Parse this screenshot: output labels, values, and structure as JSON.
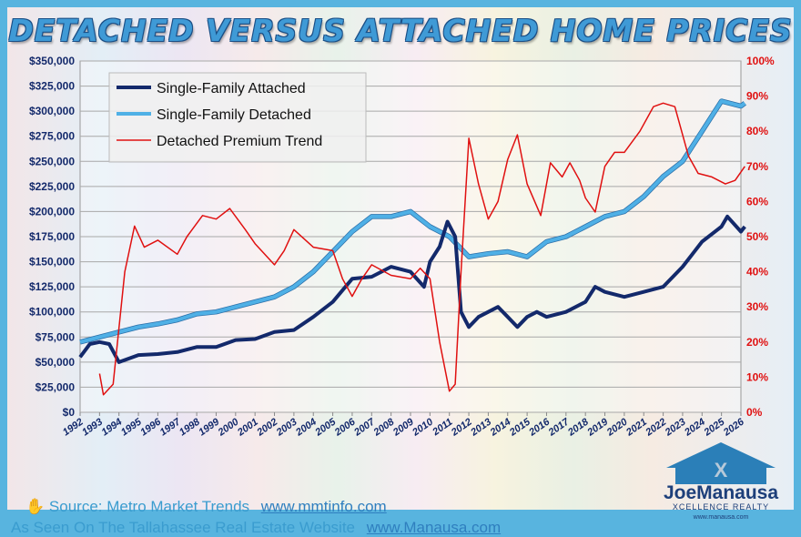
{
  "chart_data": {
    "type": "line",
    "title": "DETACHED VERSUS ATTACHED HOME PRICES",
    "x_ticks": [
      "1992",
      "1993",
      "1994",
      "1995",
      "1996",
      "1997",
      "1998",
      "1999",
      "2000",
      "2001",
      "2002",
      "2003",
      "2004",
      "2005",
      "2006",
      "2007",
      "2008",
      "2009",
      "2010",
      "2011",
      "2012",
      "2013",
      "2014",
      "2015",
      "2016",
      "2017",
      "2018",
      "2019",
      "2020",
      "2021",
      "2022",
      "2023",
      "2024",
      "2025",
      "2026"
    ],
    "xlim": [
      1992,
      2026
    ],
    "y_left_ticks": [
      "$0",
      "$25,000",
      "$50,000",
      "$75,000",
      "$100,000",
      "$125,000",
      "$150,000",
      "$175,000",
      "$200,000",
      "$225,000",
      "$250,000",
      "$275,000",
      "$300,000",
      "$325,000",
      "$350,000"
    ],
    "ylim_left": [
      0,
      350000
    ],
    "y_right_ticks": [
      "0%",
      "10%",
      "20%",
      "30%",
      "40%",
      "50%",
      "60%",
      "70%",
      "80%",
      "90%",
      "100%"
    ],
    "ylim_right": [
      0,
      100
    ],
    "grid": true,
    "legend_position": "top-left",
    "series": [
      {
        "name": "Single-Family Attached",
        "axis": "left",
        "color": "#13296b",
        "points": [
          [
            1992,
            55000
          ],
          [
            1992.5,
            68000
          ],
          [
            1993,
            70000
          ],
          [
            1993.5,
            68000
          ],
          [
            1994,
            50000
          ],
          [
            1995,
            57000
          ],
          [
            1996,
            58000
          ],
          [
            1997,
            60000
          ],
          [
            1998,
            65000
          ],
          [
            1999,
            65000
          ],
          [
            2000,
            72000
          ],
          [
            2001,
            73000
          ],
          [
            2002,
            80000
          ],
          [
            2003,
            82000
          ],
          [
            2004,
            95000
          ],
          [
            2005,
            110000
          ],
          [
            2006,
            133000
          ],
          [
            2007,
            135000
          ],
          [
            2007.5,
            140000
          ],
          [
            2008,
            145000
          ],
          [
            2009,
            140000
          ],
          [
            2009.7,
            125000
          ],
          [
            2010,
            150000
          ],
          [
            2010.5,
            165000
          ],
          [
            2010.9,
            190000
          ],
          [
            2011.3,
            175000
          ],
          [
            2011.6,
            100000
          ],
          [
            2012,
            85000
          ],
          [
            2012.5,
            95000
          ],
          [
            2013,
            100000
          ],
          [
            2013.5,
            105000
          ],
          [
            2014,
            95000
          ],
          [
            2014.5,
            85000
          ],
          [
            2015,
            95000
          ],
          [
            2015.5,
            100000
          ],
          [
            2016,
            95000
          ],
          [
            2017,
            100000
          ],
          [
            2018,
            110000
          ],
          [
            2018.5,
            125000
          ],
          [
            2019,
            120000
          ],
          [
            2020,
            115000
          ],
          [
            2021,
            120000
          ],
          [
            2022,
            125000
          ],
          [
            2023,
            145000
          ],
          [
            2024,
            170000
          ],
          [
            2025,
            185000
          ],
          [
            2025.3,
            195000
          ],
          [
            2026,
            180000
          ],
          [
            2026.2,
            185000
          ]
        ]
      },
      {
        "name": "Single-Family Detached",
        "axis": "left",
        "color": "#4fb0e6",
        "points": [
          [
            1992,
            70000
          ],
          [
            1993,
            75000
          ],
          [
            1994,
            80000
          ],
          [
            1995,
            85000
          ],
          [
            1996,
            88000
          ],
          [
            1997,
            92000
          ],
          [
            1998,
            98000
          ],
          [
            1999,
            100000
          ],
          [
            2000,
            105000
          ],
          [
            2001,
            110000
          ],
          [
            2002,
            115000
          ],
          [
            2003,
            125000
          ],
          [
            2004,
            140000
          ],
          [
            2005,
            160000
          ],
          [
            2006,
            180000
          ],
          [
            2007,
            195000
          ],
          [
            2008,
            195000
          ],
          [
            2009,
            200000
          ],
          [
            2010,
            185000
          ],
          [
            2011,
            175000
          ],
          [
            2011.5,
            165000
          ],
          [
            2012,
            155000
          ],
          [
            2013,
            158000
          ],
          [
            2014,
            160000
          ],
          [
            2015,
            155000
          ],
          [
            2016,
            170000
          ],
          [
            2017,
            175000
          ],
          [
            2018,
            185000
          ],
          [
            2019,
            195000
          ],
          [
            2020,
            200000
          ],
          [
            2021,
            215000
          ],
          [
            2022,
            235000
          ],
          [
            2023,
            250000
          ],
          [
            2024,
            280000
          ],
          [
            2025,
            310000
          ],
          [
            2026,
            305000
          ],
          [
            2026.2,
            308000
          ]
        ]
      },
      {
        "name": "Detached Premium Trend",
        "axis": "right",
        "color": "#e01010",
        "points": [
          [
            1993,
            11
          ],
          [
            1993.2,
            5
          ],
          [
            1993.7,
            8
          ],
          [
            1994.3,
            40
          ],
          [
            1994.8,
            53
          ],
          [
            1995.3,
            47
          ],
          [
            1996,
            49
          ],
          [
            1997,
            45
          ],
          [
            1997.5,
            50
          ],
          [
            1998.3,
            56
          ],
          [
            1999,
            55
          ],
          [
            1999.7,
            58
          ],
          [
            2000.5,
            52
          ],
          [
            2001,
            48
          ],
          [
            2002,
            42
          ],
          [
            2002.5,
            46
          ],
          [
            2003,
            52
          ],
          [
            2004,
            47
          ],
          [
            2005,
            46
          ],
          [
            2005.5,
            38
          ],
          [
            2006,
            33
          ],
          [
            2006.5,
            38
          ],
          [
            2007,
            42
          ],
          [
            2008,
            39
          ],
          [
            2009,
            38
          ],
          [
            2009.5,
            41
          ],
          [
            2010,
            38
          ],
          [
            2010.5,
            20
          ],
          [
            2011,
            6
          ],
          [
            2011.3,
            8
          ],
          [
            2011.6,
            40
          ],
          [
            2012,
            78
          ],
          [
            2012.5,
            65
          ],
          [
            2013,
            55
          ],
          [
            2013.5,
            60
          ],
          [
            2014,
            72
          ],
          [
            2014.5,
            79
          ],
          [
            2015,
            65
          ],
          [
            2015.7,
            56
          ],
          [
            2016.2,
            71
          ],
          [
            2016.8,
            67
          ],
          [
            2017.2,
            71
          ],
          [
            2017.7,
            66
          ],
          [
            2018,
            61
          ],
          [
            2018.5,
            57
          ],
          [
            2019,
            70
          ],
          [
            2019.5,
            74
          ],
          [
            2020,
            74
          ],
          [
            2020.8,
            80
          ],
          [
            2021.5,
            87
          ],
          [
            2022,
            88
          ],
          [
            2022.6,
            87
          ],
          [
            2023.3,
            73
          ],
          [
            2023.8,
            68
          ],
          [
            2024.5,
            67
          ],
          [
            2025.2,
            65
          ],
          [
            2025.7,
            66
          ],
          [
            2026.2,
            70
          ]
        ]
      }
    ]
  },
  "footer": {
    "source_label": "Source:  Metro Market Trends",
    "source_link": "www.mmtinfo.com",
    "seen_label": "As Seen On The Tallahassee Real Estate Website",
    "seen_link": "www.Manausa.com"
  },
  "logo": {
    "line1": "JoeManausa",
    "line2": "XCELLENCE REALTY",
    "line3": "www.manausa.com"
  },
  "colors": {
    "border": "#58b4df",
    "left_axis": "#13296b",
    "right_axis": "#e01010"
  }
}
